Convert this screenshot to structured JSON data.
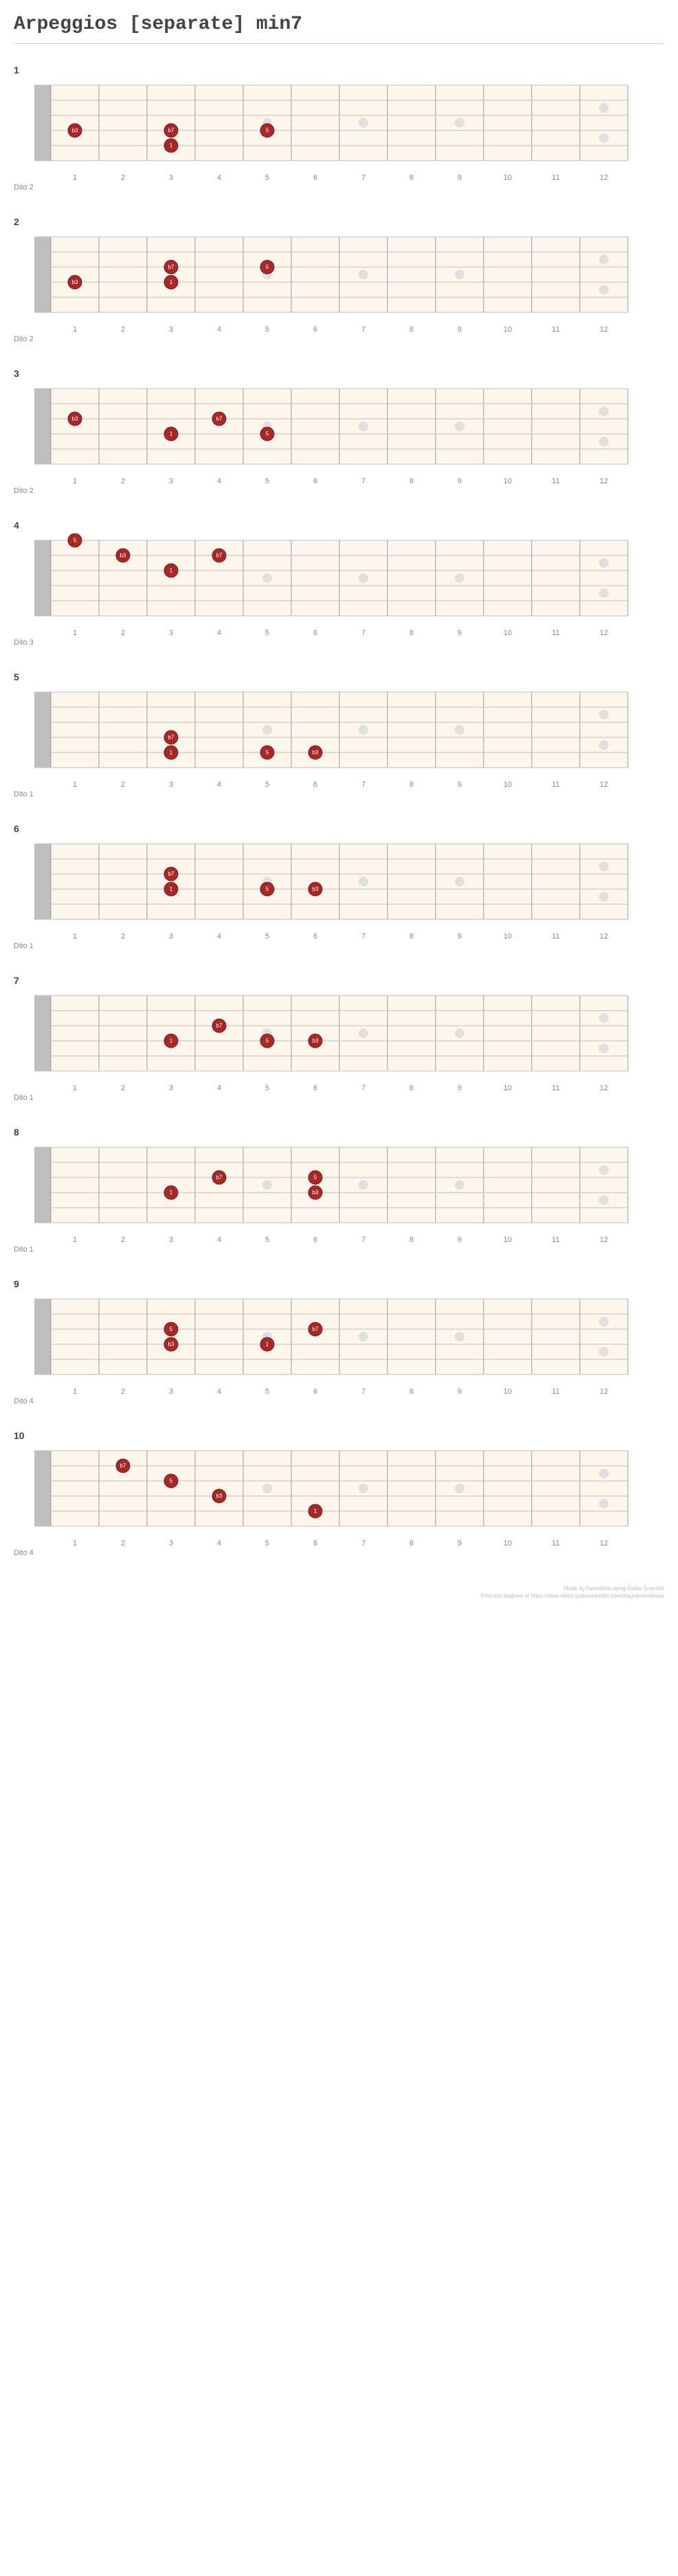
{
  "title": "Arpeggios [separate] min7",
  "layout": {
    "frets": 12,
    "strings": 6,
    "fret_width": 70,
    "string_spacing": 22,
    "nut_width": 24,
    "board_padding_left": 30,
    "fret_numbers": [
      "1",
      "2",
      "3",
      "4",
      "5",
      "6",
      "7",
      "8",
      "9",
      "10",
      "11",
      "12"
    ],
    "inlay_frets": [
      5,
      7,
      9,
      12
    ],
    "colors": {
      "fretboard_bg": "#fdf6ec",
      "fret_line": "#999999",
      "string_line": "#bfbfbf",
      "nut": "#bfbfbf",
      "inlay": "#e0e0e0",
      "note_fill": "#a82828",
      "note_stroke": "#7a1c1c",
      "note_text": "#ffffff"
    },
    "note_radius": 10,
    "inlay_radius": 7,
    "fontsize_note": 8,
    "fontsize_fretnum": 11
  },
  "diagrams": [
    {
      "num": "1",
      "caption": "Dito 2",
      "notes": [
        {
          "string": 4,
          "fret": 1,
          "label": "b3"
        },
        {
          "string": 4,
          "fret": 3,
          "label": "b7"
        },
        {
          "string": 5,
          "fret": 3,
          "label": "1"
        },
        {
          "string": 4,
          "fret": 5,
          "label": "5"
        }
      ]
    },
    {
      "num": "2",
      "caption": "Dito 2",
      "notes": [
        {
          "string": 4,
          "fret": 1,
          "label": "b3"
        },
        {
          "string": 3,
          "fret": 3,
          "label": "b7"
        },
        {
          "string": 4,
          "fret": 3,
          "label": "1"
        },
        {
          "string": 3,
          "fret": 5,
          "label": "5"
        }
      ]
    },
    {
      "num": "3",
      "caption": "Dito 2",
      "notes": [
        {
          "string": 3,
          "fret": 1,
          "label": "b3"
        },
        {
          "string": 4,
          "fret": 3,
          "label": "1"
        },
        {
          "string": 3,
          "fret": 4,
          "label": "b7"
        },
        {
          "string": 4,
          "fret": 5,
          "label": "5"
        }
      ]
    },
    {
      "num": "4",
      "caption": "Dito 3",
      "notes": [
        {
          "string": 1,
          "fret": 1,
          "label": "5"
        },
        {
          "string": 2,
          "fret": 2,
          "label": "b3"
        },
        {
          "string": 3,
          "fret": 3,
          "label": "1"
        },
        {
          "string": 2,
          "fret": 4,
          "label": "b7"
        }
      ]
    },
    {
      "num": "5",
      "caption": "Dito 1",
      "notes": [
        {
          "string": 4,
          "fret": 3,
          "label": "b7"
        },
        {
          "string": 5,
          "fret": 3,
          "label": "1"
        },
        {
          "string": 5,
          "fret": 5,
          "label": "5"
        },
        {
          "string": 5,
          "fret": 6,
          "label": "b3"
        }
      ]
    },
    {
      "num": "6",
      "caption": "Dito 1",
      "notes": [
        {
          "string": 3,
          "fret": 3,
          "label": "b7"
        },
        {
          "string": 4,
          "fret": 3,
          "label": "1"
        },
        {
          "string": 4,
          "fret": 5,
          "label": "5"
        },
        {
          "string": 4,
          "fret": 6,
          "label": "b3"
        }
      ]
    },
    {
      "num": "7",
      "caption": "Dito 1",
      "notes": [
        {
          "string": 4,
          "fret": 3,
          "label": "1"
        },
        {
          "string": 3,
          "fret": 4,
          "label": "b7"
        },
        {
          "string": 4,
          "fret": 5,
          "label": "5"
        },
        {
          "string": 4,
          "fret": 6,
          "label": "b3"
        }
      ]
    },
    {
      "num": "8",
      "caption": "Dito 1",
      "notes": [
        {
          "string": 4,
          "fret": 3,
          "label": "1"
        },
        {
          "string": 3,
          "fret": 4,
          "label": "b7"
        },
        {
          "string": 3,
          "fret": 6,
          "label": "5"
        },
        {
          "string": 4,
          "fret": 6,
          "label": "b3"
        }
      ]
    },
    {
      "num": "9",
      "caption": "Dito 4",
      "notes": [
        {
          "string": 3,
          "fret": 3,
          "label": "5"
        },
        {
          "string": 4,
          "fret": 3,
          "label": "b3"
        },
        {
          "string": 4,
          "fret": 5,
          "label": "1"
        },
        {
          "string": 3,
          "fret": 6,
          "label": "b7"
        }
      ]
    },
    {
      "num": "10",
      "caption": "Dito 4",
      "notes": [
        {
          "string": 2,
          "fret": 2,
          "label": "b7"
        },
        {
          "string": 3,
          "fret": 3,
          "label": "5"
        },
        {
          "string": 4,
          "fret": 4,
          "label": "b3"
        },
        {
          "string": 5,
          "fret": 6,
          "label": "1"
        }
      ]
    }
  ],
  "footer": {
    "line1": "Made by Fanashira using Guitar Scientist",
    "line2": "Find this diagram at https://www.editor.guitarscientist.com/diagrams/various"
  }
}
